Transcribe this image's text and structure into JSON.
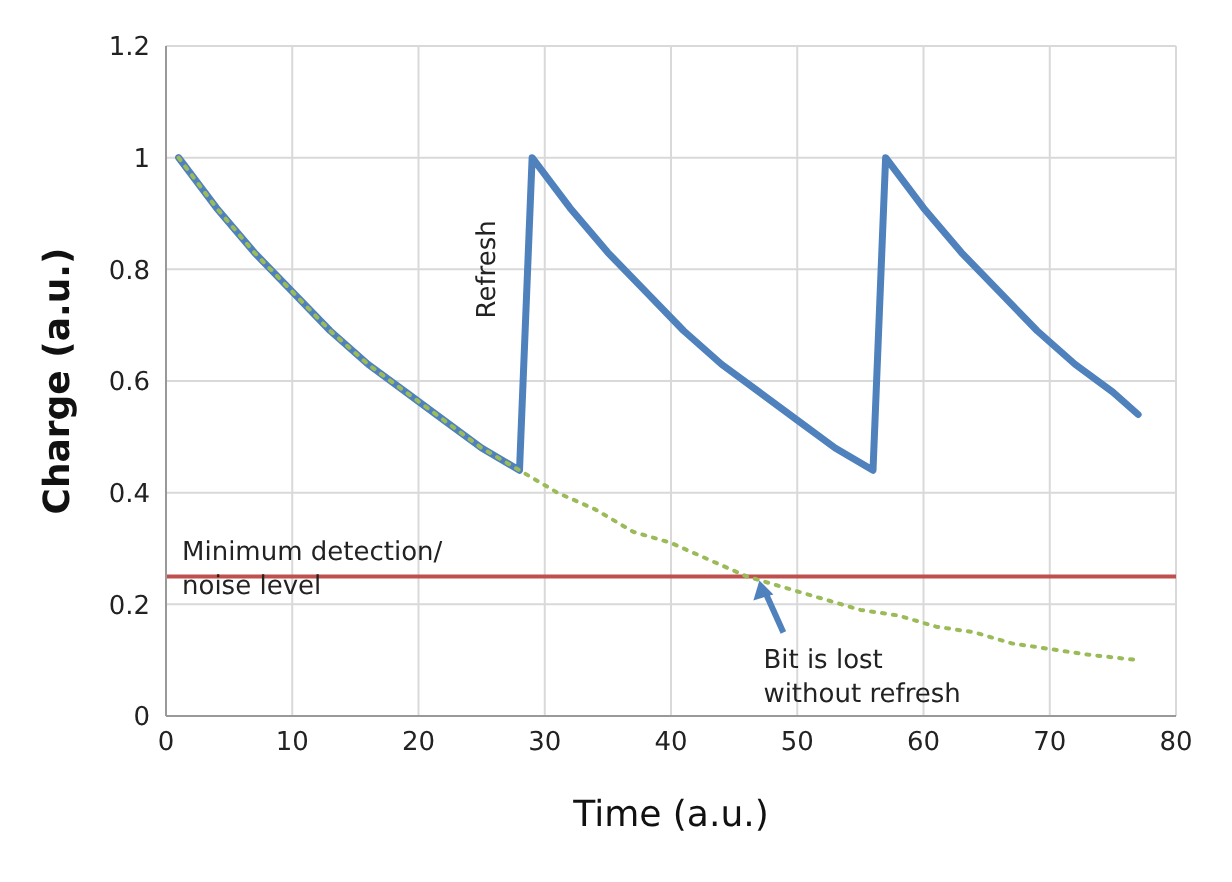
{
  "chart_data": {
    "type": "line",
    "xlabel": "Time (a.u.)",
    "ylabel": "Charge (a.u.)",
    "xlim": [
      0,
      80
    ],
    "xticks": [
      0,
      10,
      20,
      30,
      40,
      50,
      60,
      70,
      80
    ],
    "ylim": [
      0,
      1.2
    ],
    "yticks": [
      0,
      0.2,
      0.4,
      0.6,
      0.8,
      1,
      1.2
    ],
    "grid": true,
    "marker": "none",
    "series": [
      {
        "color": "#4f81bd",
        "line_style": "solid",
        "x": [
          1,
          4,
          7,
          10,
          13,
          16,
          19,
          22,
          25,
          28,
          29,
          32,
          35,
          38,
          41,
          44,
          47,
          50,
          53,
          56,
          57,
          60,
          63,
          66,
          69,
          72,
          75,
          77
        ],
        "values": [
          1,
          0.91,
          0.83,
          0.76,
          0.69,
          0.63,
          0.58,
          0.53,
          0.48,
          0.44,
          1,
          0.91,
          0.83,
          0.76,
          0.69,
          0.63,
          0.58,
          0.53,
          0.48,
          0.44,
          1,
          0.91,
          0.83,
          0.76,
          0.69,
          0.63,
          0.58,
          0.54
        ]
      },
      {
        "color": "#9bbb59",
        "line_style": "dotted",
        "x": [
          1,
          4,
          7,
          10,
          13,
          16,
          19,
          22,
          25,
          28,
          31,
          34,
          37,
          40,
          43,
          46,
          49,
          52,
          55,
          58,
          61,
          64,
          67,
          70,
          73,
          77
        ],
        "values": [
          1,
          0.91,
          0.83,
          0.76,
          0.69,
          0.63,
          0.58,
          0.53,
          0.48,
          0.44,
          0.4,
          0.37,
          0.33,
          0.31,
          0.28,
          0.25,
          0.23,
          0.21,
          0.19,
          0.18,
          0.16,
          0.15,
          0.13,
          0.12,
          0.11,
          0.1
        ]
      }
    ],
    "ref_lines": [
      {
        "axis": "y",
        "value": 0.25,
        "label": "Minimum detection/\nnoise level",
        "color": "#c0504d"
      }
    ],
    "annotations": [
      {
        "text": "Refresh",
        "x": 28,
        "y": 0.8
      },
      {
        "text": "Bit is lost\nwithout refresh",
        "x": 47,
        "y": 0.25
      }
    ]
  }
}
